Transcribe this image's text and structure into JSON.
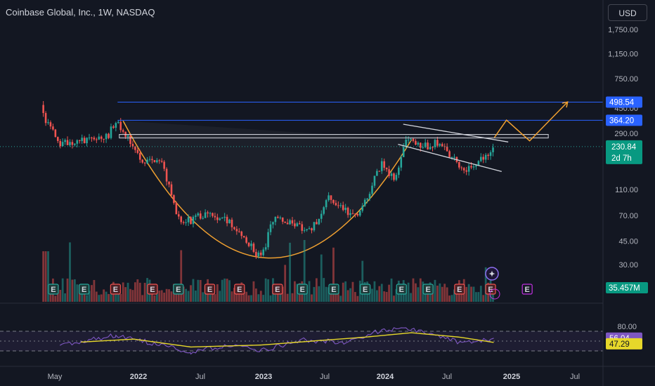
{
  "header": {
    "title": "Coinbase Global, Inc., 1W, NASDAQ",
    "currency": "USD"
  },
  "colors": {
    "background": "#131722",
    "up": "#26a69a",
    "down": "#ef5350",
    "pattern": "#f0a030",
    "level": "#2962ff",
    "rsi": "#7e57c2",
    "rsi_ma": "#e6d72a"
  },
  "chart_data": [
    {
      "type": "candlestick",
      "title": "Coinbase Global, Inc., 1W, NASDAQ",
      "price_scale": "log",
      "ylim": [
        20,
        2400
      ],
      "yticks": [
        1750,
        1150,
        750,
        450,
        290,
        110,
        70,
        45,
        30
      ],
      "ytick_labels": [
        "1,750.00",
        "1,150.00",
        "750.00",
        "450.00",
        "290.00",
        "110.00",
        "70.00",
        "45.00",
        "30.00"
      ],
      "xticks": [
        "May",
        "2022",
        "Jul",
        "2023",
        "Jul",
        "2024",
        "Jul",
        "2025",
        "Jul"
      ],
      "close_path": [
        {
          "date": "2021-04-14",
          "close": 400
        },
        {
          "date": "2021-06-01",
          "close": 240
        },
        {
          "date": "2021-08-01",
          "close": 255
        },
        {
          "date": "2021-10-15",
          "close": 270
        },
        {
          "date": "2021-11-10",
          "close": 355
        },
        {
          "date": "2021-12-20",
          "close": 255
        },
        {
          "date": "2022-02-01",
          "close": 175
        },
        {
          "date": "2022-03-20",
          "close": 190
        },
        {
          "date": "2022-05-15",
          "close": 60
        },
        {
          "date": "2022-07-15",
          "close": 70
        },
        {
          "date": "2022-09-15",
          "close": 68
        },
        {
          "date": "2022-11-01",
          "close": 55
        },
        {
          "date": "2023-01-05",
          "close": 33
        },
        {
          "date": "2023-02-10",
          "close": 70
        },
        {
          "date": "2023-04-01",
          "close": 60
        },
        {
          "date": "2023-06-01",
          "close": 55
        },
        {
          "date": "2023-07-20",
          "close": 100
        },
        {
          "date": "2023-09-01",
          "close": 75
        },
        {
          "date": "2023-10-20",
          "close": 75
        },
        {
          "date": "2023-12-20",
          "close": 175
        },
        {
          "date": "2024-01-25",
          "close": 130
        },
        {
          "date": "2024-03-01",
          "close": 265
        },
        {
          "date": "2024-04-20",
          "close": 230
        },
        {
          "date": "2024-06-01",
          "close": 250
        },
        {
          "date": "2024-08-15",
          "close": 155
        },
        {
          "date": "2024-10-15",
          "close": 200
        },
        {
          "date": "2024-11-08",
          "close": 230.84
        }
      ],
      "last_price": {
        "label": "230.84",
        "countdown": "2d 7h"
      },
      "levels": [
        {
          "value": 498.54,
          "label": "498.54"
        },
        {
          "value": 364.2,
          "label": "364.20"
        }
      ],
      "resistance_zone": [
        268,
        285
      ],
      "volume_label": "35.457M",
      "projection": [
        {
          "date": "2024-11-10",
          "value": 270
        },
        {
          "date": "2024-12-15",
          "value": 365
        },
        {
          "date": "2025-02-20",
          "value": 255
        },
        {
          "date": "2025-06-10",
          "value": 500
        }
      ],
      "earnings_markers": [
        {
          "date": "2021-05-13",
          "result": "E",
          "beat": true
        },
        {
          "date": "2021-08-10",
          "result": "E",
          "beat": true
        },
        {
          "date": "2021-11-09",
          "result": "E",
          "beat": false
        },
        {
          "date": "2022-02-24",
          "result": "E",
          "beat": false
        },
        {
          "date": "2022-05-10",
          "result": "E",
          "beat": true
        },
        {
          "date": "2022-08-09",
          "result": "E",
          "beat": false
        },
        {
          "date": "2022-11-03",
          "result": "E",
          "beat": false
        },
        {
          "date": "2023-02-21",
          "result": "E",
          "beat": false
        },
        {
          "date": "2023-05-04",
          "result": "E",
          "beat": true
        },
        {
          "date": "2023-08-03",
          "result": "E",
          "beat": true
        },
        {
          "date": "2023-11-02",
          "result": "E",
          "beat": true
        },
        {
          "date": "2024-02-15",
          "result": "E",
          "beat": true
        },
        {
          "date": "2024-05-02",
          "result": "E",
          "beat": true
        },
        {
          "date": "2024-08-01",
          "result": "E",
          "beat": false
        },
        {
          "date": "2024-10-30",
          "result": "E",
          "beat": false
        },
        {
          "date": "2025-02-13",
          "result": "E",
          "upcoming": true
        }
      ]
    },
    {
      "type": "line",
      "title": "RSI",
      "ylim": [
        0,
        100
      ],
      "yticks": [
        80
      ],
      "ytick_labels": [
        "80.00"
      ],
      "bands": [
        70,
        30
      ],
      "series": [
        {
          "points": [
            {
              "date": "2021-06-01",
              "value": 40
            },
            {
              "date": "2021-11-10",
              "value": 62
            },
            {
              "date": "2022-03-01",
              "value": 45
            },
            {
              "date": "2022-06-15",
              "value": 28
            },
            {
              "date": "2022-10-01",
              "value": 42
            },
            {
              "date": "2023-01-05",
              "value": 30
            },
            {
              "date": "2023-05-01",
              "value": 52
            },
            {
              "date": "2023-09-01",
              "value": 48
            },
            {
              "date": "2023-12-20",
              "value": 72
            },
            {
              "date": "2024-03-15",
              "value": 74
            },
            {
              "date": "2024-08-15",
              "value": 45
            },
            {
              "date": "2024-11-08",
              "value": 56.04
            }
          ],
          "label": "56.04"
        },
        {
          "points": [
            {
              "date": "2021-08-01",
              "value": 48
            },
            {
              "date": "2022-01-01",
              "value": 54
            },
            {
              "date": "2022-06-15",
              "value": 38
            },
            {
              "date": "2023-01-05",
              "value": 42
            },
            {
              "date": "2023-06-01",
              "value": 50
            },
            {
              "date": "2023-11-01",
              "value": 58
            },
            {
              "date": "2024-03-15",
              "value": 67
            },
            {
              "date": "2024-08-01",
              "value": 58
            },
            {
              "date": "2024-11-08",
              "value": 47.29
            }
          ],
          "label": "47.29"
        }
      ]
    }
  ]
}
